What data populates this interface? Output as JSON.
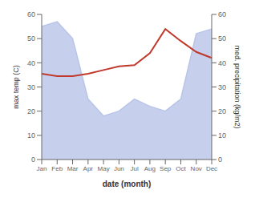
{
  "chart_data": {
    "type": "line",
    "categories": [
      "Jan",
      "Feb",
      "Mar",
      "Apr",
      "May",
      "Jun",
      "Jul",
      "Aug",
      "Sep",
      "Oct",
      "Nov",
      "Dec"
    ],
    "xlabel": "date (month)",
    "ylabel": "max temp (C)",
    "y2label": "med. precipitation (kg/m2)",
    "ylim": [
      0,
      60
    ],
    "yticks": [
      0,
      10,
      20,
      30,
      40,
      50,
      60
    ],
    "y2lim": [
      0,
      60
    ],
    "y2ticks": [
      0,
      10,
      20,
      30,
      40,
      50,
      60
    ],
    "grid": false,
    "series": [
      {
        "type": "area",
        "axis": "y2",
        "color": "#b8c4e8",
        "values": [
          55,
          57,
          50,
          25,
          18,
          20,
          25,
          22,
          20,
          25,
          52,
          54
        ]
      },
      {
        "type": "line",
        "color": "#c0392b",
        "values": [
          35.5,
          34.5,
          34.5,
          35.5,
          37.0,
          38.5,
          39.0,
          44.0,
          54.0,
          49.0,
          44.5,
          42.0
        ]
      }
    ]
  }
}
